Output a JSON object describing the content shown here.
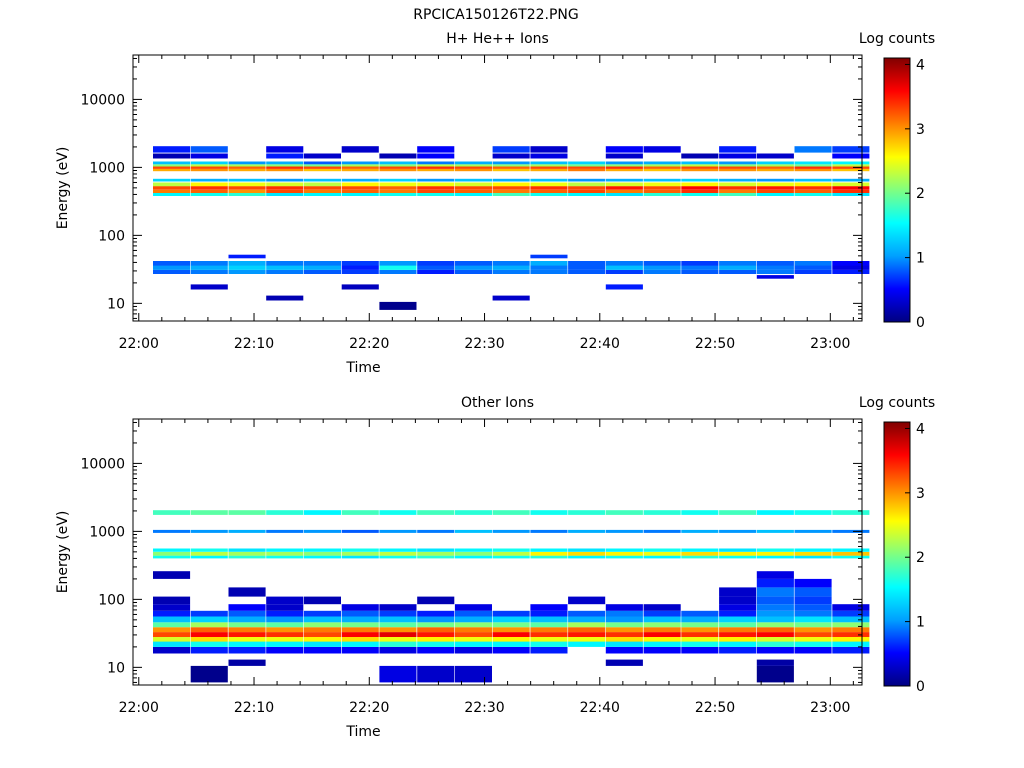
{
  "page": {
    "title": "RPCICA150126T22.PNG"
  },
  "colormap": {
    "stops": [
      "#000080",
      "#0000ff",
      "#00a0ff",
      "#00ffff",
      "#80ff80",
      "#ffff00",
      "#ff8000",
      "#ff0000",
      "#800000"
    ]
  },
  "chart_data": [
    {
      "type": "heatmap",
      "title": "H+ He++ Ions",
      "xlabel": "Time",
      "ylabel": "Energy (eV)",
      "yscale": "log",
      "xlim": [
        "21:59:30",
        "23:02:45"
      ],
      "ylim": [
        5.5,
        45000
      ],
      "x_ticks": [
        "22:00",
        "22:10",
        "22:20",
        "22:30",
        "22:40",
        "22:50",
        "23:00"
      ],
      "y_ticks": [
        "10",
        "100",
        "1000",
        "10000"
      ],
      "colorbar": {
        "label": "Log counts",
        "range": [
          0,
          4.1
        ],
        "ticks": [
          "0",
          "1",
          "2",
          "3",
          "4"
        ]
      },
      "time_bins": 19,
      "bands": [
        {
          "energy_range": [
            8,
            10.5
          ],
          "values": [
            null,
            null,
            null,
            null,
            null,
            null,
            0.05,
            null,
            null,
            null,
            null,
            null,
            null,
            null,
            null,
            null,
            null,
            null,
            null
          ]
        },
        {
          "energy_range": [
            11,
            13
          ],
          "values": [
            null,
            null,
            null,
            0.2,
            null,
            null,
            null,
            null,
            null,
            0.3,
            null,
            null,
            null,
            null,
            null,
            null,
            null,
            null,
            null
          ]
        },
        {
          "energy_range": [
            16,
            19
          ],
          "values": [
            null,
            0.3,
            null,
            null,
            null,
            0.25,
            null,
            null,
            null,
            null,
            null,
            null,
            0.6,
            null,
            null,
            null,
            null,
            null,
            null
          ]
        },
        {
          "energy_range": [
            23,
            26
          ],
          "values": [
            null,
            null,
            null,
            null,
            null,
            null,
            null,
            null,
            null,
            null,
            null,
            null,
            null,
            null,
            null,
            null,
            0.4,
            null,
            null
          ]
        },
        {
          "energy_range": [
            27,
            31
          ],
          "values": [
            0.8,
            0.9,
            1.0,
            0.9,
            0.8,
            0.7,
            0.9,
            0.6,
            0.8,
            0.9,
            0.9,
            0.8,
            0.7,
            0.9,
            0.8,
            0.8,
            0.9,
            0.7,
            0.6
          ]
        },
        {
          "energy_range": [
            31,
            36
          ],
          "values": [
            1.0,
            1.1,
            1.3,
            1.2,
            1.1,
            0.6,
            1.6,
            0.8,
            1.0,
            1.1,
            0.9,
            0.8,
            1.2,
            1.0,
            0.9,
            1.1,
            0.9,
            0.8,
            0.4
          ]
        },
        {
          "energy_range": [
            36,
            42
          ],
          "values": [
            0.8,
            0.9,
            1.1,
            0.9,
            0.9,
            0.7,
            1.0,
            0.7,
            0.8,
            0.9,
            1.1,
            0.8,
            0.9,
            0.8,
            0.7,
            0.9,
            0.8,
            0.9,
            0.5
          ]
        },
        {
          "energy_range": [
            46,
            52
          ],
          "values": [
            null,
            null,
            0.6,
            null,
            null,
            null,
            null,
            null,
            null,
            null,
            0.7,
            null,
            null,
            null,
            null,
            null,
            null,
            null,
            null
          ]
        },
        {
          "energy_range": [
            380,
            420
          ],
          "values": [
            1.5,
            1.6,
            1.7,
            1.4,
            1.5,
            1.5,
            1.6,
            1.6,
            1.5,
            1.8,
            1.6,
            1.5,
            1.4,
            1.7,
            1.6,
            1.8,
            1.5,
            1.6,
            1.4
          ]
        },
        {
          "energy_range": [
            420,
            470
          ],
          "values": [
            3.1,
            3.2,
            3.0,
            3.3,
            3.1,
            3.2,
            3.1,
            3.3,
            3.2,
            3.1,
            3.2,
            3.3,
            3.1,
            3.2,
            3.4,
            3.1,
            3.3,
            3.2,
            3.4
          ]
        },
        {
          "energy_range": [
            470,
            530
          ],
          "values": [
            3.3,
            3.4,
            3.3,
            3.4,
            3.3,
            3.3,
            3.2,
            3.4,
            3.3,
            3.3,
            3.4,
            3.3,
            3.5,
            3.3,
            3.6,
            3.4,
            3.5,
            3.4,
            3.6
          ]
        },
        {
          "energy_range": [
            530,
            600
          ],
          "values": [
            2.3,
            2.6,
            2.5,
            2.4,
            2.3,
            2.6,
            2.5,
            2.5,
            2.4,
            2.6,
            2.5,
            2.3,
            2.4,
            2.5,
            2.6,
            2.4,
            2.5,
            2.6,
            2.4
          ]
        },
        {
          "energy_range": [
            620,
            680
          ],
          "values": [
            1.3,
            1.1,
            1.2,
            1.0,
            1.2,
            1.1,
            1.3,
            1.0,
            1.2,
            1.1,
            1.2,
            1.0,
            1.1,
            1.2,
            1.3,
            1.1,
            1.0,
            1.2,
            1.1
          ]
        },
        {
          "energy_range": [
            880,
            950
          ],
          "values": [
            2.9,
            3.0,
            2.9,
            3.0,
            2.8,
            2.9,
            3.0,
            2.9,
            3.0,
            2.8,
            2.9,
            3.1,
            2.9,
            2.8,
            3.0,
            3.0,
            2.9,
            3.0,
            2.8
          ]
        },
        {
          "energy_range": [
            950,
            1030
          ],
          "values": [
            3.3,
            3.3,
            3.2,
            3.4,
            3.3,
            3.2,
            3.3,
            3.4,
            3.3,
            3.2,
            3.3,
            3.3,
            3.4,
            3.2,
            3.3,
            3.3,
            3.2,
            3.4,
            3.3
          ]
        },
        {
          "energy_range": [
            1030,
            1110
          ],
          "values": [
            2.1,
            2.3,
            2.2,
            2.1,
            2.0,
            2.2,
            2.1,
            2.3,
            2.2,
            2.1,
            2.2,
            2.0,
            2.1,
            2.2,
            2.3,
            2.1,
            2.2,
            2.0,
            2.3
          ]
        },
        {
          "energy_range": [
            1110,
            1220
          ],
          "values": [
            1.2,
            1.3,
            1.0,
            1.1,
            0.8,
            1.0,
            1.2,
            0.9,
            1.1,
            1.0,
            1.2,
            1.3,
            1.0,
            1.1,
            1.2,
            1.0,
            1.3,
            1.4,
            1.5
          ]
        },
        {
          "energy_range": [
            1350,
            1600
          ],
          "values": [
            0.2,
            0.4,
            null,
            0.6,
            0.3,
            null,
            0.2,
            0.5,
            null,
            0.3,
            0.4,
            null,
            0.3,
            null,
            0.2,
            0.4,
            0.3,
            null,
            0.5
          ]
        },
        {
          "energy_range": [
            1650,
            2050
          ],
          "values": [
            0.6,
            0.8,
            null,
            0.4,
            null,
            0.3,
            null,
            0.5,
            null,
            0.7,
            0.3,
            null,
            0.5,
            0.4,
            null,
            0.6,
            null,
            0.9,
            0.7
          ]
        }
      ]
    },
    {
      "type": "heatmap",
      "title": "Other Ions",
      "xlabel": "Time",
      "ylabel": "Energy (eV)",
      "yscale": "log",
      "xlim": [
        "21:59:30",
        "23:02:45"
      ],
      "ylim": [
        5.5,
        45000
      ],
      "x_ticks": [
        "22:00",
        "22:10",
        "22:20",
        "22:30",
        "22:40",
        "22:50",
        "23:00"
      ],
      "y_ticks": [
        "10",
        "100",
        "1000",
        "10000"
      ],
      "colorbar": {
        "label": "Log counts",
        "range": [
          0,
          4.1
        ],
        "ticks": [
          "0",
          "1",
          "2",
          "3",
          "4"
        ]
      },
      "time_bins": 19,
      "bands": [
        {
          "energy_range": [
            6,
            10.5
          ],
          "values": [
            null,
            0.05,
            null,
            null,
            null,
            null,
            0.4,
            0.3,
            0.3,
            null,
            null,
            null,
            null,
            null,
            null,
            null,
            0.05,
            null,
            null
          ]
        },
        {
          "energy_range": [
            10.5,
            13
          ],
          "values": [
            null,
            null,
            0.15,
            null,
            null,
            null,
            null,
            null,
            null,
            null,
            null,
            null,
            0.2,
            null,
            null,
            null,
            0.15,
            null,
            null
          ]
        },
        {
          "energy_range": [
            16,
            20
          ],
          "values": [
            0.3,
            0.6,
            0.6,
            0.5,
            0.5,
            0.5,
            0.4,
            0.5,
            0.4,
            0.5,
            0.6,
            null,
            0.5,
            0.5,
            0.5,
            0.6,
            0.5,
            0.5,
            0.6
          ]
        },
        {
          "energy_range": [
            20,
            24
          ],
          "values": [
            1.4,
            1.6,
            1.5,
            1.5,
            1.4,
            1.5,
            1.7,
            1.6,
            1.5,
            1.5,
            1.6,
            1.5,
            1.4,
            1.5,
            1.6,
            1.5,
            1.7,
            1.6,
            1.5
          ]
        },
        {
          "energy_range": [
            24,
            28
          ],
          "values": [
            2.4,
            2.7,
            2.5,
            2.5,
            2.6,
            2.7,
            2.5,
            2.6,
            2.5,
            2.6,
            2.5,
            2.5,
            2.7,
            2.6,
            2.5,
            2.6,
            2.4,
            2.5,
            2.6
          ]
        },
        {
          "energy_range": [
            28,
            33
          ],
          "values": [
            3.3,
            3.6,
            3.5,
            3.4,
            3.3,
            3.6,
            3.7,
            3.5,
            3.3,
            3.6,
            3.4,
            3.5,
            3.4,
            3.6,
            3.4,
            3.5,
            3.6,
            3.3,
            3.4
          ]
        },
        {
          "energy_range": [
            33,
            39
          ],
          "values": [
            3.0,
            3.2,
            3.1,
            3.0,
            3.1,
            3.1,
            3.0,
            3.2,
            3.1,
            3.0,
            3.1,
            3.2,
            3.0,
            3.1,
            3.0,
            3.1,
            3.2,
            3.0,
            3.1
          ]
        },
        {
          "energy_range": [
            39,
            46
          ],
          "values": [
            1.9,
            2.2,
            2.0,
            1.9,
            2.1,
            2.0,
            1.9,
            2.0,
            2.1,
            2.0,
            1.9,
            2.2,
            2.0,
            2.1,
            2.0,
            1.9,
            2.1,
            2.0,
            2.1
          ]
        },
        {
          "energy_range": [
            46,
            56
          ],
          "values": [
            1.2,
            1.3,
            1.1,
            1.0,
            1.2,
            1.1,
            1.2,
            1.0,
            1.1,
            1.3,
            1.2,
            1.1,
            1.0,
            1.2,
            1.1,
            1.3,
            1.2,
            1.4,
            1.2
          ]
        },
        {
          "energy_range": [
            56,
            68
          ],
          "values": [
            0.6,
            0.7,
            0.8,
            0.6,
            0.7,
            0.8,
            0.7,
            0.6,
            0.8,
            0.7,
            0.6,
            0.8,
            0.9,
            0.7,
            0.8,
            0.6,
            1.0,
            0.9,
            0.7
          ]
        },
        {
          "energy_range": [
            68,
            85
          ],
          "values": [
            0.3,
            null,
            0.5,
            0.3,
            null,
            0.4,
            0.3,
            null,
            0.4,
            null,
            0.5,
            null,
            0.4,
            0.3,
            null,
            0.4,
            0.9,
            0.8,
            0.4
          ]
        },
        {
          "energy_range": [
            85,
            110
          ],
          "values": [
            0.2,
            null,
            null,
            0.3,
            0.2,
            null,
            null,
            0.2,
            null,
            null,
            null,
            0.3,
            null,
            null,
            null,
            0.3,
            0.8,
            0.7,
            null
          ]
        },
        {
          "energy_range": [
            110,
            150
          ],
          "values": [
            null,
            null,
            0.2,
            null,
            null,
            null,
            null,
            null,
            null,
            null,
            null,
            null,
            null,
            null,
            null,
            0.3,
            0.9,
            0.8,
            null
          ]
        },
        {
          "energy_range": [
            150,
            200
          ],
          "values": [
            null,
            null,
            null,
            null,
            null,
            null,
            null,
            null,
            null,
            null,
            null,
            null,
            null,
            null,
            null,
            null,
            0.6,
            0.5,
            null
          ]
        },
        {
          "energy_range": [
            200,
            260
          ],
          "values": [
            0.2,
            null,
            null,
            null,
            null,
            null,
            null,
            null,
            null,
            null,
            null,
            null,
            null,
            null,
            null,
            null,
            0.4,
            null,
            null
          ]
        },
        {
          "energy_range": [
            400,
            440
          ],
          "values": [
            1.6,
            1.5,
            1.7,
            1.6,
            1.5,
            1.4,
            1.6,
            1.7,
            1.5,
            1.6,
            1.7,
            1.5,
            1.6,
            1.5,
            1.7,
            1.6,
            1.5,
            1.4,
            1.6
          ]
        },
        {
          "energy_range": [
            440,
            500
          ],
          "values": [
            2.1,
            2.3,
            2.2,
            2.2,
            2.1,
            2.2,
            2.3,
            2.2,
            2.1,
            2.3,
            2.6,
            2.7,
            2.6,
            2.5,
            2.7,
            2.6,
            2.6,
            2.7,
            2.8
          ]
        },
        {
          "energy_range": [
            500,
            560
          ],
          "values": [
            1.5,
            1.6,
            1.4,
            1.5,
            1.5,
            1.6,
            1.5,
            1.4,
            1.5,
            1.6,
            1.5,
            1.4,
            1.5,
            1.6,
            1.5,
            1.4,
            1.6,
            1.5,
            1.5
          ]
        },
        {
          "energy_range": [
            950,
            1050
          ],
          "values": [
            0.9,
            1.0,
            1.1,
            0.9,
            1.0,
            0.8,
            1.0,
            0.9,
            1.2,
            1.0,
            0.9,
            1.1,
            1.0,
            0.9,
            1.1,
            1.0,
            1.2,
            1.0,
            0.9
          ]
        },
        {
          "energy_range": [
            1750,
            2050
          ],
          "values": [
            1.8,
            1.9,
            1.9,
            1.7,
            1.5,
            1.8,
            1.6,
            1.8,
            1.7,
            1.8,
            1.6,
            1.7,
            1.8,
            1.7,
            1.6,
            1.8,
            1.5,
            1.6,
            1.7
          ]
        }
      ]
    }
  ]
}
